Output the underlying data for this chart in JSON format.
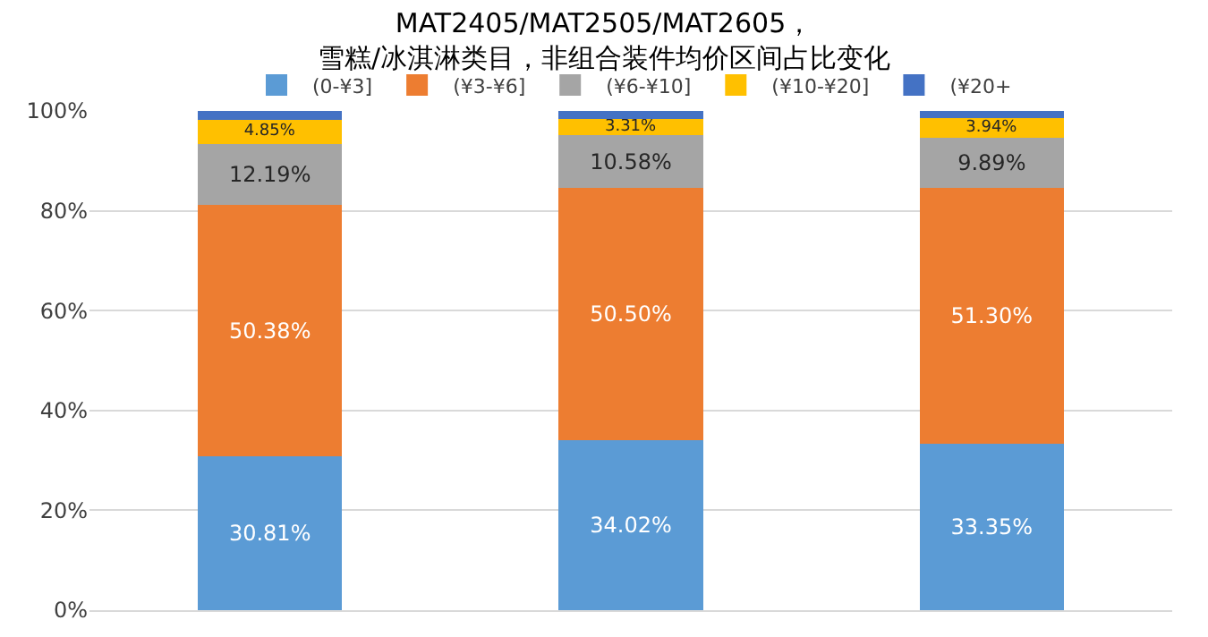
{
  "chart_data": {
    "type": "bar",
    "stacked": true,
    "title": "MAT2405/MAT2505/MAT2605，",
    "subtitle": "雪糕/冰淇淋类目，非组合装件均价区间占比变化",
    "categories": [
      null,
      null,
      null
    ],
    "series": [
      {
        "name": "(0-¥3]",
        "color": "#5b9bd5",
        "values": [
          30.81,
          34.02,
          33.35
        ],
        "value_labels": [
          "30.81%",
          "34.02%",
          "33.35%"
        ]
      },
      {
        "name": "(¥3-¥6]",
        "color": "#ed7d31",
        "values": [
          50.38,
          50.5,
          51.3
        ],
        "value_labels": [
          "50.38%",
          "50.50%",
          "51.30%"
        ]
      },
      {
        "name": "(¥6-¥10]",
        "color": "#a5a5a5",
        "values": [
          12.19,
          10.58,
          9.89
        ],
        "value_labels": [
          "12.19%",
          "10.58%",
          "9.89%"
        ]
      },
      {
        "name": "(¥10-¥20]",
        "color": "#ffc000",
        "values": [
          4.85,
          3.31,
          3.94
        ],
        "value_labels": [
          "4.85%",
          "3.31%",
          "3.94%"
        ]
      },
      {
        "name": "(¥20+",
        "color": "#4472c4",
        "values": [
          1.8,
          1.6,
          1.5
        ]
      }
    ],
    "ylim": [
      0,
      100
    ],
    "yticks": [
      {
        "value": 0,
        "label": "0%"
      },
      {
        "value": 20,
        "label": "20%"
      },
      {
        "value": 40,
        "label": "40%"
      },
      {
        "value": 60,
        "label": "60%"
      },
      {
        "value": 80,
        "label": "80%"
      },
      {
        "value": 100,
        "label": "100%"
      }
    ],
    "grid": "y",
    "legend": "top"
  }
}
